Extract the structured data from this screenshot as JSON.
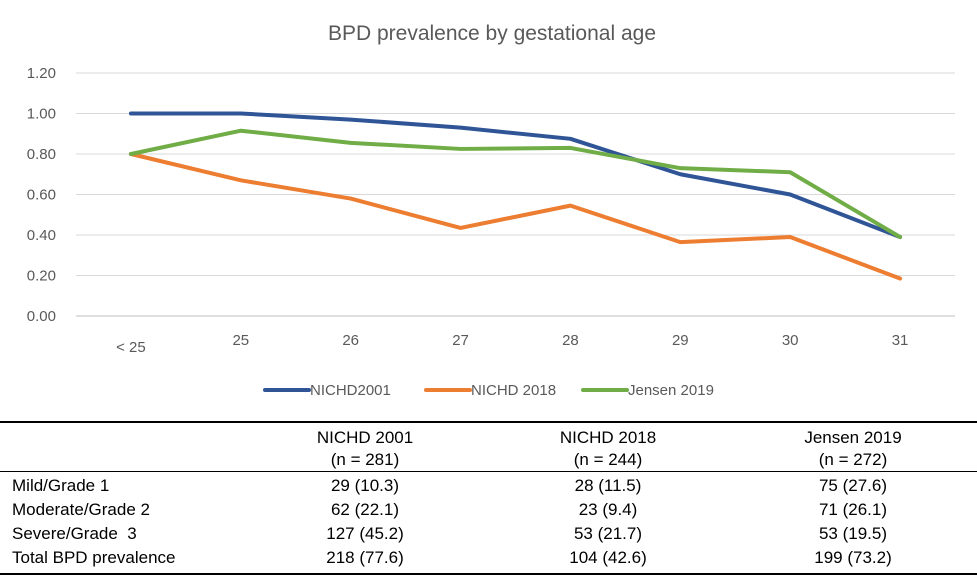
{
  "chart_data": {
    "type": "line",
    "title": "BPD prevalence by gestational age",
    "categories": [
      "< 25",
      "25",
      "26",
      "27",
      "28",
      "29",
      "30",
      "31"
    ],
    "ylim": [
      0,
      1.2
    ],
    "yticks": [
      "0.00",
      "0.20",
      "0.40",
      "0.60",
      "0.80",
      "1.00",
      "1.20"
    ],
    "grid": true,
    "legend_position": "bottom",
    "series": [
      {
        "name": "NICHD2001",
        "color": "#2F5597",
        "values": [
          1.0,
          1.0,
          0.97,
          0.93,
          0.875,
          0.7,
          0.6,
          0.39
        ]
      },
      {
        "name": "NICHD 2018",
        "color": "#ED7D31",
        "values": [
          0.8,
          0.67,
          0.58,
          0.435,
          0.545,
          0.365,
          0.39,
          0.185
        ]
      },
      {
        "name": "Jensen 2019",
        "color": "#70AD47",
        "values": [
          0.8,
          0.915,
          0.855,
          0.825,
          0.83,
          0.73,
          0.71,
          0.39
        ]
      }
    ]
  },
  "table": {
    "headers": [
      {
        "name": "NICHD 2001",
        "n": "(n = 281)"
      },
      {
        "name": "NICHD 2018",
        "n": "(n = 244)"
      },
      {
        "name": "Jensen 2019",
        "n": "(n = 272)"
      }
    ],
    "rows": [
      {
        "label": "Mild/Grade 1",
        "values": [
          "29 (10.3)",
          "28 (11.5)",
          "75 (27.6)"
        ]
      },
      {
        "label": "Moderate/Grade 2",
        "values": [
          "62 (22.1)",
          "23 (9.4)",
          "71 (26.1)"
        ]
      },
      {
        "label": "Severe/Grade  3",
        "values": [
          "127 (45.2)",
          "53 (21.7)",
          "53 (19.5)"
        ]
      },
      {
        "label": "Total BPD prevalence",
        "values": [
          "218 (77.6)",
          "104 (42.6)",
          "199 (73.2)"
        ]
      }
    ]
  }
}
